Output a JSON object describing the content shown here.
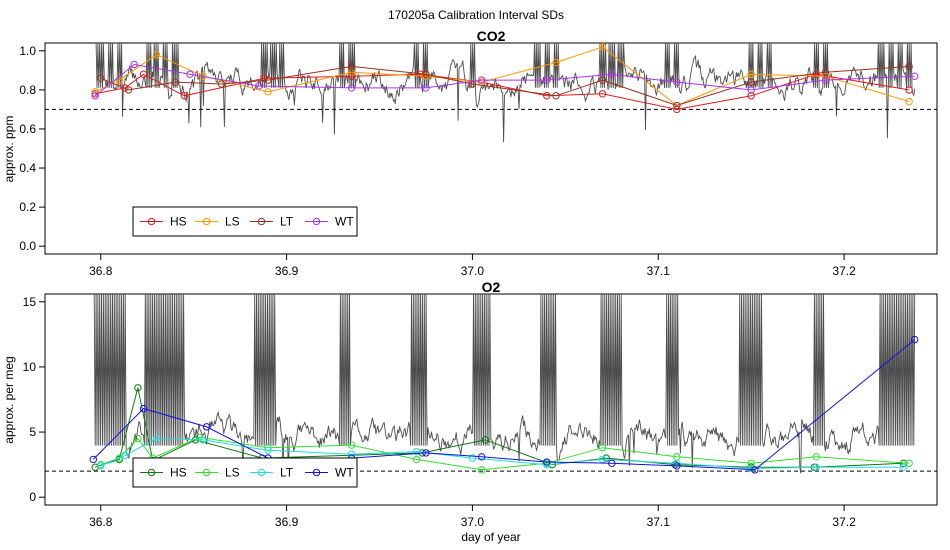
{
  "figure_title": "170205a   Calibration Interval SDs",
  "chart_data": [
    {
      "type": "line",
      "title": "CO2",
      "ylabel": "approx. ppm",
      "xlabel": "",
      "xlim": [
        36.77,
        37.25
      ],
      "ylim": [
        -0.04,
        1.04
      ],
      "xticks": [
        "36.8",
        "36.9",
        "37.0",
        "37.1",
        "37.2"
      ],
      "xtick_values": [
        36.8,
        36.9,
        37.0,
        37.1,
        37.2
      ],
      "yticks": [
        "0.0",
        "0.2",
        "0.4",
        "0.6",
        "0.8",
        "1.0"
      ],
      "ytick_values": [
        0.0,
        0.2,
        0.4,
        0.6,
        0.8,
        1.0
      ],
      "reference_line": 0.7,
      "legend_position": "bottom-left",
      "background_trace": {
        "name": "raw SD",
        "color": "#4d4d4d",
        "base": 0.85,
        "amplitude": 0.1,
        "min": 0.53,
        "max": 1.04,
        "seed": 7,
        "spike_x": [
          36.797,
          36.8,
          36.805,
          36.81,
          36.826,
          36.83,
          36.835,
          36.84,
          36.888,
          36.893,
          36.897,
          36.93,
          36.935,
          36.97,
          36.975,
          37.0,
          37.035,
          37.04,
          37.045,
          37.07,
          37.075,
          37.08,
          37.105,
          37.11,
          37.15,
          37.155,
          37.16,
          37.185,
          37.19,
          37.22,
          37.225,
          37.23,
          37.235
        ]
      },
      "series": [
        {
          "name": "HS",
          "color": "#e31a1c",
          "x": [
            36.797,
            36.813,
            36.823,
            36.845,
            36.888,
            36.935,
            36.972,
            37.005,
            37.04,
            37.07,
            37.11,
            37.15,
            37.185,
            37.235
          ],
          "y": [
            0.78,
            0.81,
            0.88,
            0.77,
            0.86,
            0.87,
            0.88,
            0.84,
            0.77,
            0.78,
            0.7,
            0.77,
            0.88,
            0.8
          ]
        },
        {
          "name": "LS",
          "color": "#ff9900",
          "x": [
            36.797,
            36.81,
            36.83,
            36.855,
            36.89,
            36.935,
            36.975,
            37.005,
            37.045,
            37.07,
            37.11,
            37.15,
            37.19,
            37.235
          ],
          "y": [
            0.79,
            0.85,
            0.98,
            0.87,
            0.79,
            0.89,
            0.87,
            0.84,
            0.94,
            1.02,
            0.72,
            0.88,
            0.87,
            0.74
          ]
        },
        {
          "name": "LT",
          "color": "#993322",
          "x": [
            36.8,
            36.815,
            36.84,
            36.865,
            36.89,
            36.935,
            36.975,
            37.0,
            37.045,
            37.07,
            37.11,
            37.15,
            37.19,
            37.235
          ],
          "y": [
            0.86,
            0.8,
            0.84,
            0.83,
            0.85,
            0.92,
            0.88,
            0.83,
            0.77,
            0.85,
            0.72,
            0.84,
            0.89,
            0.92
          ]
        },
        {
          "name": "WT",
          "color": "#aa33ee",
          "x": [
            36.797,
            36.818,
            36.848,
            36.885,
            36.935,
            36.975,
            37.005,
            37.04,
            37.075,
            37.11,
            37.15,
            37.19,
            37.238
          ],
          "y": [
            0.77,
            0.93,
            0.88,
            0.82,
            0.81,
            0.81,
            0.85,
            0.85,
            0.88,
            0.84,
            0.8,
            0.85,
            0.87
          ]
        }
      ]
    },
    {
      "type": "line",
      "title": "O2",
      "ylabel": "approx. per meg",
      "xlabel": "day of year",
      "xlim": [
        36.77,
        37.25
      ],
      "ylim": [
        -0.6,
        15.6
      ],
      "xticks": [
        "36.8",
        "36.9",
        "37.0",
        "37.1",
        "37.2"
      ],
      "xtick_values": [
        36.8,
        36.9,
        37.0,
        37.1,
        37.2
      ],
      "yticks": [
        "0",
        "5",
        "10",
        "15"
      ],
      "ytick_values": [
        0,
        5,
        10,
        15
      ],
      "reference_line": 2.0,
      "legend_position": "bottom-left",
      "background_trace": {
        "name": "raw SD",
        "color": "#4d4d4d",
        "base": 4.6,
        "amplitude": 1.6,
        "min": 1.5,
        "max": 15.6,
        "seed": 11,
        "spike_x": [
          36.797,
          36.8,
          36.803,
          36.806,
          36.809,
          36.812,
          36.825,
          36.828,
          36.831,
          36.834,
          36.837,
          36.84,
          36.843,
          36.884,
          36.887,
          36.89,
          36.893,
          36.93,
          36.933,
          36.968,
          36.971,
          36.974,
          37.002,
          37.005,
          37.008,
          37.038,
          37.041,
          37.044,
          37.07,
          37.073,
          37.076,
          37.079,
          37.106,
          37.109,
          37.145,
          37.148,
          37.151,
          37.154,
          37.185,
          37.188,
          37.22,
          37.223,
          37.226,
          37.229,
          37.232,
          37.235,
          37.238
        ]
      },
      "series": [
        {
          "name": "HS",
          "color": "#117711",
          "x": [
            36.797,
            36.81,
            36.82,
            36.828,
            36.851,
            36.887,
            36.973,
            37.007,
            37.043,
            37.072,
            37.109,
            37.15,
            37.184,
            37.232
          ],
          "y": [
            2.3,
            2.9,
            8.4,
            2.8,
            4.4,
            3.0,
            3.4,
            4.4,
            2.5,
            3.0,
            2.5,
            2.3,
            2.3,
            2.6
          ]
        },
        {
          "name": "LS",
          "color": "#33dd33",
          "x": [
            36.8,
            36.81,
            36.82,
            36.828,
            36.853,
            36.89,
            36.935,
            36.97,
            37.005,
            37.04,
            37.07,
            37.11,
            37.15,
            37.185,
            37.235
          ],
          "y": [
            2.5,
            3.0,
            4.5,
            3.0,
            4.6,
            3.8,
            4.0,
            2.9,
            2.1,
            2.6,
            3.8,
            3.1,
            2.6,
            3.1,
            2.6
          ]
        },
        {
          "name": "LT",
          "color": "#22dddd",
          "x": [
            36.8,
            36.813,
            36.83,
            36.855,
            36.89,
            36.935,
            36.97,
            37.0,
            37.04,
            37.07,
            37.11,
            37.15,
            37.185,
            37.232
          ],
          "y": [
            2.4,
            3.2,
            4.5,
            4.4,
            3.6,
            3.3,
            3.5,
            3.0,
            2.5,
            2.9,
            2.6,
            2.2,
            2.3,
            2.3
          ]
        },
        {
          "name": "WT",
          "color": "#1111dd",
          "x": [
            36.796,
            36.823,
            36.857,
            36.89,
            36.935,
            36.975,
            37.005,
            37.04,
            37.075,
            37.11,
            37.152,
            37.238
          ],
          "y": [
            2.9,
            6.8,
            5.4,
            3.0,
            3.0,
            3.4,
            3.1,
            2.7,
            2.6,
            2.4,
            2.1,
            12.1
          ]
        }
      ]
    }
  ]
}
